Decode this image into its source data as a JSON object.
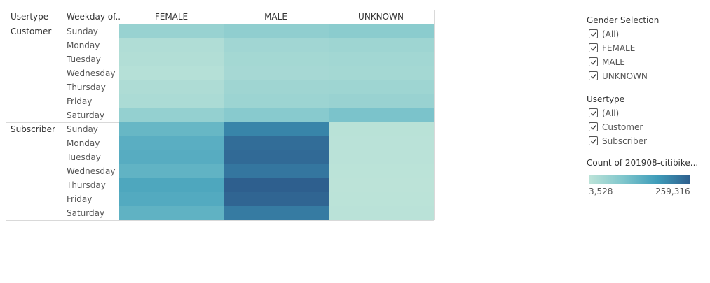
{
  "headers": {
    "usertype": "Usertype",
    "weekday": "Weekday of..",
    "columns": [
      "FEMALE",
      "MALE",
      "UNKNOWN"
    ]
  },
  "usertypes": [
    "Customer",
    "Subscriber"
  ],
  "weekdays": [
    "Sunday",
    "Monday",
    "Tuesday",
    "Wednesday",
    "Thursday",
    "Friday",
    "Saturday"
  ],
  "filters": {
    "gender": {
      "title": "Gender Selection",
      "options": [
        {
          "label": "(All)",
          "checked": true
        },
        {
          "label": "FEMALE",
          "checked": true
        },
        {
          "label": "MALE",
          "checked": true
        },
        {
          "label": "UNKNOWN",
          "checked": true
        }
      ]
    },
    "usertype": {
      "title": "Usertype",
      "options": [
        {
          "label": "(All)",
          "checked": true
        },
        {
          "label": "Customer",
          "checked": true
        },
        {
          "label": "Subscriber",
          "checked": true
        }
      ]
    }
  },
  "legend": {
    "title": "Count of 201908-citibike...",
    "min_label": "3,528",
    "max_label": "259,316",
    "colors": [
      "#bce3d8",
      "#7fc6cc",
      "#3f9dba",
      "#2e5f8e"
    ]
  },
  "chart_data": {
    "type": "heatmap",
    "columns": [
      "FEMALE",
      "MALE",
      "UNKNOWN"
    ],
    "row_groups": [
      "Customer",
      "Subscriber"
    ],
    "rows": [
      "Sunday",
      "Monday",
      "Tuesday",
      "Wednesday",
      "Thursday",
      "Friday",
      "Saturday"
    ],
    "color_range": [
      3528,
      259316
    ],
    "values": {
      "Customer": [
        [
          22000,
          28000,
          32000
        ],
        [
          8000,
          16000,
          18000
        ],
        [
          7000,
          14000,
          15000
        ],
        [
          6000,
          13000,
          14000
        ],
        [
          9000,
          17000,
          18000
        ],
        [
          10000,
          19000,
          21000
        ],
        [
          25000,
          35000,
          48000
        ]
      ],
      "Subscriber": [
        [
          70000,
          175000,
          4500
        ],
        [
          88000,
          225000,
          4000
        ],
        [
          92000,
          232000,
          4000
        ],
        [
          78000,
          205000,
          3700
        ],
        [
          105000,
          259316,
          3528
        ],
        [
          98000,
          245000,
          3800
        ],
        [
          80000,
          195000,
          4100
        ]
      ]
    }
  }
}
